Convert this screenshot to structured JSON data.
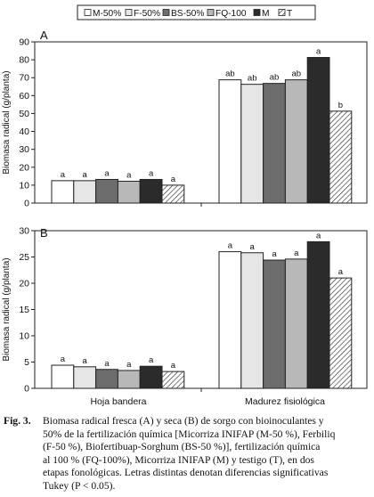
{
  "chart_data": [
    {
      "panel": "A",
      "type": "bar",
      "ylabel": "Biomasa radical (g/planta)",
      "ylim": [
        0,
        90
      ],
      "yticks": [
        "0",
        "10",
        "20",
        "30",
        "40",
        "50",
        "60",
        "70",
        "80",
        "90"
      ],
      "ytick_values": [
        0,
        10,
        20,
        30,
        40,
        50,
        60,
        70,
        80,
        90
      ],
      "categories": [
        "Hoja bandera",
        "Madurez fisiológica"
      ],
      "series": [
        {
          "name": "M-50%",
          "values": [
            12.5,
            68.8
          ],
          "letters": [
            "a",
            "ab"
          ]
        },
        {
          "name": "F-50%",
          "values": [
            12.5,
            66.3
          ],
          "letters": [
            "a",
            "ab"
          ]
        },
        {
          "name": "BS-50%",
          "values": [
            13.2,
            66.8
          ],
          "letters": [
            "a",
            "ab"
          ]
        },
        {
          "name": "FQ-100",
          "values": [
            12.2,
            68.8
          ],
          "letters": [
            "a",
            "ab"
          ]
        },
        {
          "name": "M",
          "values": [
            13.2,
            81.3
          ],
          "letters": [
            "a",
            "a"
          ]
        },
        {
          "name": "T",
          "values": [
            10.0,
            51.3
          ],
          "letters": [
            "a",
            "b"
          ]
        }
      ],
      "grid": false,
      "legend": "top"
    },
    {
      "panel": "B",
      "type": "bar",
      "ylabel": "Biomasa radical (g/planta)",
      "ylim": [
        0,
        30
      ],
      "yticks": [
        "0",
        "5",
        "10",
        "15",
        "20",
        "25",
        "30"
      ],
      "ytick_values": [
        0,
        5,
        10,
        15,
        20,
        25,
        30
      ],
      "categories": [
        "Hoja bandera",
        "Madurez fisiológica"
      ],
      "series": [
        {
          "name": "M-50%",
          "values": [
            4.4,
            26.0
          ],
          "letters": [
            "a",
            "a"
          ]
        },
        {
          "name": "F-50%",
          "values": [
            4.1,
            25.8
          ],
          "letters": [
            "a",
            "a"
          ]
        },
        {
          "name": "BS-50%",
          "values": [
            3.6,
            24.4
          ],
          "letters": [
            "a",
            "a"
          ]
        },
        {
          "name": "FQ-100",
          "values": [
            3.4,
            24.6
          ],
          "letters": [
            "a",
            "a"
          ]
        },
        {
          "name": "M",
          "values": [
            4.2,
            27.9
          ],
          "letters": [
            "a",
            "a"
          ]
        },
        {
          "name": "T",
          "values": [
            3.2,
            21.0
          ],
          "letters": [
            "a",
            "a"
          ]
        }
      ],
      "grid": false,
      "legend": "top"
    }
  ],
  "legend": [
    {
      "label": "M-50%",
      "color": "#ffffff",
      "pattern": "solid"
    },
    {
      "label": "F-50%",
      "color": "#e6e6e6",
      "pattern": "solid"
    },
    {
      "label": "BS-50%",
      "color": "#6d6d6d",
      "pattern": "solid"
    },
    {
      "label": "FQ-100",
      "color": "#b8b8b8",
      "pattern": "solid"
    },
    {
      "label": "M",
      "color": "#2b2b2b",
      "pattern": "solid"
    },
    {
      "label": "T",
      "color": "#ffffff",
      "pattern": "hatch"
    }
  ],
  "caption": {
    "fig": "Fig. 3.",
    "lines": [
      "Biomasa radical fresca (A) y seca (B) de sorgo con bioinoculantes y",
      "50% de la fertilización química [Micorriza INIFAP (M-50 %), Ferbiliq",
      "(F-50 %), Biofertibuap-Sorghum (BS-50 %)], fertilización química",
      "al 100 % (FQ-100%), Micorriza INIFAP (M) y testigo (T), en dos",
      "etapas fonológicas. Letras distintas denotan diferencias significativas",
      "Tukey (P < 0.05)."
    ]
  }
}
